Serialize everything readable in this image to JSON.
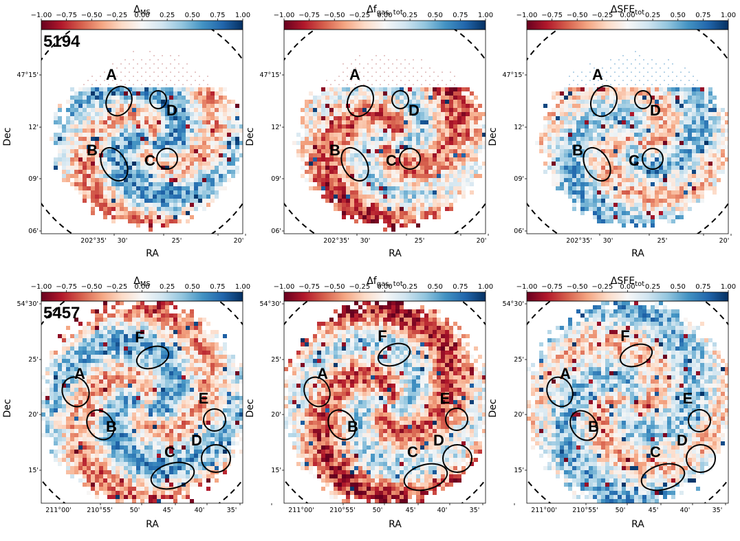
{
  "chart_data": {
    "type": "heatmap",
    "colormap": "RdBu",
    "colorbar": {
      "range": [
        -1.0,
        1.0
      ],
      "ticks": [
        "−1.00",
        "−0.75",
        "−0.50",
        "−0.25",
        "0.00",
        "0.25",
        "0.50",
        "0.75",
        "1.00"
      ]
    },
    "axis_labels": {
      "x": "RA",
      "y": "Dec"
    },
    "panel_titles": [
      {
        "base": "Δ",
        "sub": "MS"
      },
      {
        "base": "Δf",
        "sub": "gas, tot"
      },
      {
        "base": "ΔSFE",
        "sub": "tot"
      }
    ],
    "galaxies": [
      {
        "id": "5194",
        "ra_ticks": [
          "202°35'",
          "30'",
          "25'",
          "20'"
        ],
        "dec_ticks": [
          "47°15'",
          "12'",
          "09'",
          "06'"
        ],
        "panels": [
          {
            "quantity": "delta_ms",
            "regions": [
              "A",
              "B",
              "C",
              "D"
            ]
          },
          {
            "quantity": "delta_fgas_tot",
            "regions": [
              "A",
              "B",
              "C",
              "D"
            ]
          },
          {
            "quantity": "delta_sfe_tot",
            "regions": [
              "A",
              "B",
              "C",
              "D"
            ]
          }
        ]
      },
      {
        "id": "5457",
        "ra_ticks": [
          "211°00'",
          "210°55'",
          "50'",
          "45'",
          "40'",
          "35'"
        ],
        "dec_ticks": [
          "54°30'",
          "25'",
          "20'",
          "15'"
        ],
        "panels": [
          {
            "quantity": "delta_ms",
            "regions": [
              "A",
              "B",
              "C",
              "D",
              "E",
              "F"
            ]
          },
          {
            "quantity": "delta_fgas_tot",
            "regions": [
              "A",
              "B",
              "C",
              "D",
              "E",
              "F"
            ]
          },
          {
            "quantity": "delta_sfe_tot",
            "regions": [
              "A",
              "B",
              "C",
              "D",
              "E",
              "F"
            ]
          }
        ]
      }
    ]
  }
}
